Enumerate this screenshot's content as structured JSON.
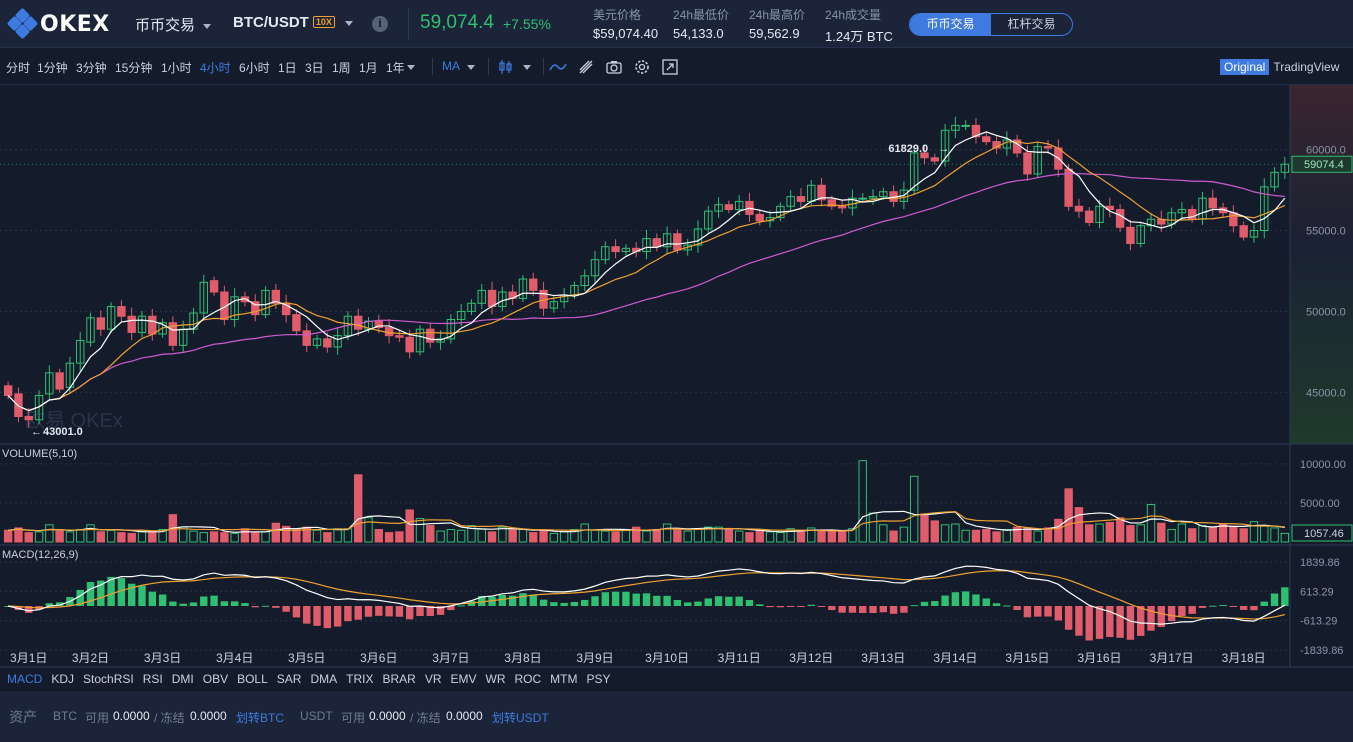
{
  "header": {
    "brand": "OKEX",
    "market_menu": "币币交易",
    "pair": "BTC/USDT",
    "leverage_badge": "10X",
    "last_price": "59,074.4",
    "change_pct": "+7.55%",
    "stats": [
      {
        "label": "美元价格",
        "value": "$59,074.40"
      },
      {
        "label": "24h最低价",
        "value": "54,133.0"
      },
      {
        "label": "24h最高价",
        "value": "59,562.9"
      },
      {
        "label": "24h成交量",
        "value": "1.24万 BTC"
      }
    ],
    "mode_tabs": [
      "币币交易",
      "杠杆交易"
    ],
    "active_mode": "币币交易",
    "colors": {
      "up": "#2fbf71",
      "down": "#e05c6a",
      "accent": "#3f7ae0"
    }
  },
  "toolbar": {
    "timeframes": [
      "分时",
      "1分钟",
      "3分钟",
      "15分钟",
      "1小时",
      "4小时",
      "6小时",
      "1日",
      "3日",
      "1周",
      "1月",
      "1年"
    ],
    "active_timeframe": "4小时",
    "indicator_select": "MA",
    "icons": [
      "candle-type-icon",
      "indicator-line-icon",
      "draw-tool-icon",
      "camera-icon",
      "settings-icon",
      "fullscreen-icon"
    ],
    "view_tabs": [
      "Original",
      "TradingView"
    ],
    "active_view": "Original"
  },
  "chart_data": {
    "type": "candlestick",
    "title": "BTC/USDT 4小时",
    "watermark": "欧易 OKEx",
    "x_labels": [
      "3月1日",
      "3月2日",
      "3月3日",
      "3月4日",
      "3月5日",
      "3月6日",
      "3月7日",
      "3月8日",
      "3月9日",
      "3月10日",
      "3月11日",
      "3月12日",
      "3月13日",
      "3月14日",
      "3月15日",
      "3月16日",
      "3月17日",
      "3月18日"
    ],
    "price_axis": {
      "ticks": [
        "60000.0",
        "55000.0",
        "50000.0",
        "45000.0"
      ],
      "ylim": [
        41800,
        64000
      ],
      "current_price_label": "59074.4"
    },
    "annotations": {
      "high": "61829.0",
      "low": "43001.0"
    },
    "close": [
      44800,
      43500,
      43300,
      44800,
      46200,
      45200,
      46800,
      48200,
      49600,
      48900,
      50300,
      49700,
      48700,
      49700,
      48600,
      49300,
      47900,
      48900,
      49900,
      51800,
      51200,
      49500,
      50900,
      50600,
      49800,
      51300,
      50500,
      49800,
      48800,
      47900,
      48300,
      47800,
      48500,
      49700,
      48900,
      49400,
      49000,
      48500,
      48400,
      47500,
      48900,
      48100,
      48300,
      49500,
      50000,
      50500,
      51300,
      50300,
      51200,
      50800,
      52000,
      51300,
      50200,
      50600,
      51000,
      51600,
      52200,
      53200,
      54000,
      53700,
      53900,
      53700,
      54500,
      54000,
      54800,
      53800,
      54100,
      55100,
      56200,
      56600,
      56300,
      56800,
      56000,
      55600,
      55800,
      56500,
      57100,
      56800,
      57800,
      56900,
      56500,
      56400,
      57000,
      57000,
      57100,
      57400,
      56800,
      57500,
      59800,
      59500,
      59300,
      61200,
      61500,
      61500,
      60800,
      60500,
      60100,
      60600,
      59800,
      58500,
      60200,
      60100,
      58800,
      56500,
      56200,
      55500,
      56500,
      56300,
      55200,
      54200,
      55300,
      55700,
      55400,
      56100,
      56300,
      55700,
      57000,
      56400,
      56100,
      55300,
      54600,
      55000,
      57700,
      58600,
      59100
    ],
    "open": [
      45400,
      44900,
      43500,
      43300,
      44900,
      46200,
      45300,
      46800,
      48100,
      49600,
      48900,
      50300,
      49700,
      48700,
      49700,
      48600,
      49300,
      47900,
      48900,
      49900,
      51900,
      51200,
      49500,
      50900,
      50600,
      49800,
      51300,
      50500,
      49800,
      48800,
      47900,
      48300,
      47800,
      48500,
      49700,
      48900,
      49400,
      49000,
      48500,
      48400,
      47500,
      48900,
      48100,
      48300,
      49500,
      50000,
      50500,
      51300,
      50300,
      51200,
      50800,
      52000,
      51300,
      50200,
      50600,
      51000,
      51600,
      52200,
      53200,
      54000,
      53700,
      53900,
      53700,
      54500,
      54000,
      54800,
      53800,
      54100,
      55100,
      56200,
      56600,
      56300,
      56800,
      56000,
      55600,
      55800,
      56500,
      57100,
      56800,
      57800,
      56900,
      56500,
      56400,
      57000,
      57000,
      57100,
      57400,
      56800,
      57500,
      59800,
      59500,
      59300,
      61200,
      61500,
      61500,
      60800,
      60500,
      60100,
      60600,
      59800,
      58500,
      60200,
      60100,
      58800,
      56500,
      56200,
      55500,
      56500,
      56300,
      55200,
      54200,
      55300,
      55700,
      55400,
      56100,
      56300,
      55700,
      57000,
      56400,
      56100,
      55300,
      54600,
      55000,
      57700,
      58600
    ],
    "volume_axis": {
      "label": "VOLUME(5,10)",
      "ticks": [
        "10000.00",
        "5000.00"
      ],
      "current": "1057.46"
    },
    "volume": [
      1500,
      1800,
      1200,
      1300,
      2200,
      1400,
      1300,
      1600,
      2200,
      1300,
      1500,
      1200,
      1100,
      1400,
      1300,
      1600,
      3500,
      1900,
      1400,
      1200,
      1300,
      1200,
      1100,
      1700,
      1200,
      1300,
      2400,
      2000,
      1600,
      1900,
      1500,
      1200,
      1700,
      1700,
      8600,
      3100,
      1600,
      1200,
      1300,
      4100,
      3000,
      2100,
      1400,
      1600,
      1500,
      2100,
      1700,
      1300,
      1900,
      1600,
      1600,
      1200,
      1400,
      1100,
      1300,
      1600,
      2300,
      1500,
      1400,
      1300,
      1500,
      1900,
      1400,
      1600,
      2300,
      1600,
      1400,
      1700,
      1900,
      1900,
      1600,
      1400,
      1200,
      1400,
      1300,
      1200,
      1700,
      1500,
      1800,
      1400,
      1300,
      1300,
      1700,
      10400,
      3700,
      2200,
      1400,
      1900,
      8400,
      3600,
      2700,
      2200,
      2300,
      1500,
      1500,
      1600,
      1300,
      1600,
      1900,
      1800,
      1400,
      1800,
      2900,
      6800,
      4400,
      2200,
      2300,
      2500,
      3100,
      2100,
      2200,
      4800,
      2400,
      1600,
      2300,
      1700,
      2100,
      1900,
      2300,
      2000,
      1700,
      2600,
      2100,
      1800,
      1100
    ],
    "macd_axis": {
      "label": "MACD(12,26,9)",
      "ticks": [
        "1839.86",
        "613.29",
        "-613.29",
        "-1839.86"
      ]
    },
    "series": [
      {
        "name": "MA5",
        "color": "#ffffff"
      },
      {
        "name": "MA10",
        "color": "#f0a030"
      },
      {
        "name": "MA30",
        "color": "#d05ad0"
      }
    ]
  },
  "indicators": [
    "MACD",
    "KDJ",
    "StochRSI",
    "RSI",
    "DMI",
    "OBV",
    "BOLL",
    "SAR",
    "DMA",
    "TRIX",
    "BRAR",
    "VR",
    "EMV",
    "WR",
    "ROC",
    "MTM",
    "PSY"
  ],
  "active_indicator": "MACD",
  "assets": {
    "label": "资产",
    "btc": {
      "coin": "BTC",
      "avail_label": "可用",
      "avail": "0.0000",
      "frozen_label": "/ 冻结",
      "frozen": "0.0000",
      "transfer": "划转BTC"
    },
    "usdt": {
      "coin": "USDT",
      "avail_label": "可用",
      "avail": "0.0000",
      "frozen_label": "/ 冻结",
      "frozen": "0.0000",
      "transfer": "划转USDT"
    }
  }
}
